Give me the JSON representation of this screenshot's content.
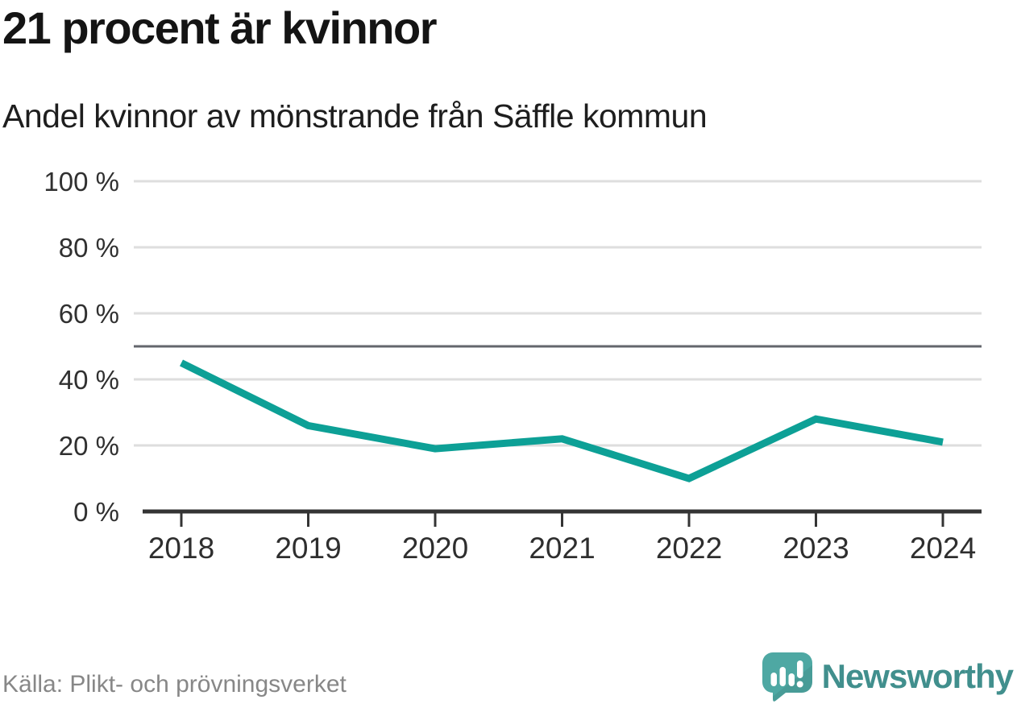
{
  "header": {
    "title": "21 procent är kvinnor",
    "subtitle": "Andel kvinnor av mönstrande från Säffle kommun"
  },
  "chart_data": {
    "type": "line",
    "categories": [
      "2018",
      "2019",
      "2020",
      "2021",
      "2022",
      "2023",
      "2024"
    ],
    "values": [
      45,
      26,
      19,
      22,
      10,
      28,
      21
    ],
    "series_name": "Andel kvinnor",
    "unit": "%",
    "title": "21 procent är kvinnor",
    "subtitle": "Andel kvinnor av mönstrande från Säffle kommun",
    "xlabel": "",
    "ylabel": "",
    "ylim": [
      0,
      100
    ],
    "yticks": [
      0,
      20,
      40,
      60,
      80,
      100
    ],
    "ytick_suffix": " %",
    "reference_line": 50,
    "grid": true,
    "legend_position": "none"
  },
  "footer": {
    "source": "Källa: Plikt- och prövningsverket",
    "brand": "Newsworthy"
  },
  "icons": {
    "logo": "newsworthy-speech-bubble-barchart-icon"
  },
  "colors": {
    "accent_line": "#0da096",
    "reference_line": "#63666c",
    "gridline": "#dedede",
    "axis_line": "#343434",
    "title_text": "#141414",
    "subtitle_text": "#1e1e1e",
    "tick_text": "#2e2e2e",
    "source_text": "#878787",
    "brand_text": "#418f8d",
    "logo_fill": "#4ea8a3",
    "logo_shadow": "#3f918d"
  }
}
